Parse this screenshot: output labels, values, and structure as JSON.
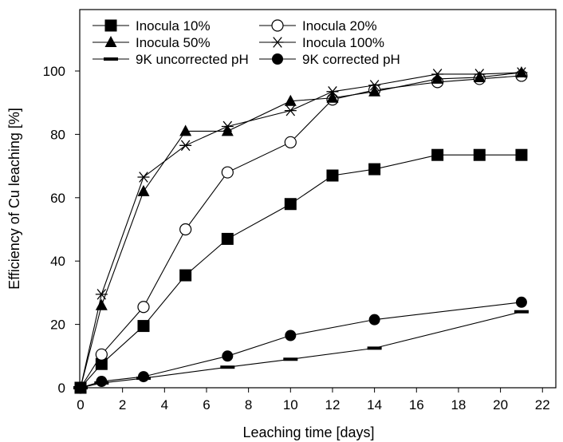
{
  "chart_data": {
    "type": "line",
    "title": "",
    "xlabel": "Leaching time [days]",
    "ylabel": "Efficiency of Cu leaching [%]",
    "xlim": [
      0,
      22
    ],
    "ylim": [
      0,
      110
    ],
    "x_ticks": [
      0,
      2,
      4,
      6,
      8,
      10,
      12,
      14,
      16,
      18,
      20,
      22
    ],
    "y_ticks": [
      0,
      20,
      40,
      60,
      80,
      100
    ],
    "grid": false,
    "legend_position": "top-left",
    "series": [
      {
        "name": "Inocula 10%",
        "marker": "filled-square",
        "x": [
          0,
          1,
          3,
          5,
          7,
          10,
          12,
          14,
          17,
          19,
          21
        ],
        "y": [
          0,
          7.5,
          19.5,
          35.5,
          47,
          58,
          67,
          69,
          73.5,
          73.5,
          73.5
        ]
      },
      {
        "name": "Inocula 20%",
        "marker": "open-circle",
        "x": [
          0,
          1,
          3,
          5,
          7,
          10,
          12,
          14,
          17,
          19,
          21
        ],
        "y": [
          0,
          10.5,
          25.5,
          50,
          68,
          77.5,
          91,
          94,
          96.5,
          97.5,
          98.5
        ]
      },
      {
        "name": "Inocula 50%",
        "marker": "filled-triangle",
        "x": [
          0,
          1,
          3,
          5,
          7,
          10,
          12,
          14,
          17,
          19,
          21
        ],
        "y": [
          0,
          26,
          62,
          81,
          81,
          90.5,
          91.5,
          93.5,
          97.5,
          98,
          99.5
        ]
      },
      {
        "name": "Inocula 100%",
        "marker": "asterisk",
        "x": [
          0,
          1,
          3,
          5,
          7,
          10,
          12,
          14,
          17,
          19,
          21
        ],
        "y": [
          0,
          29.5,
          66.5,
          76.5,
          82.5,
          87.5,
          93.5,
          95.5,
          99,
          99,
          99.5
        ]
      },
      {
        "name": "9K uncorrected pH",
        "marker": "dash",
        "x": [
          0,
          1,
          3,
          7,
          10,
          14,
          21
        ],
        "y": [
          0,
          1.5,
          3,
          6.5,
          9,
          12.5,
          24
        ]
      },
      {
        "name": "9K corrected pH",
        "marker": "filled-circle",
        "x": [
          0,
          1,
          3,
          7,
          10,
          14,
          21
        ],
        "y": [
          0,
          2,
          3.5,
          10,
          16.5,
          21.5,
          27
        ]
      }
    ]
  }
}
